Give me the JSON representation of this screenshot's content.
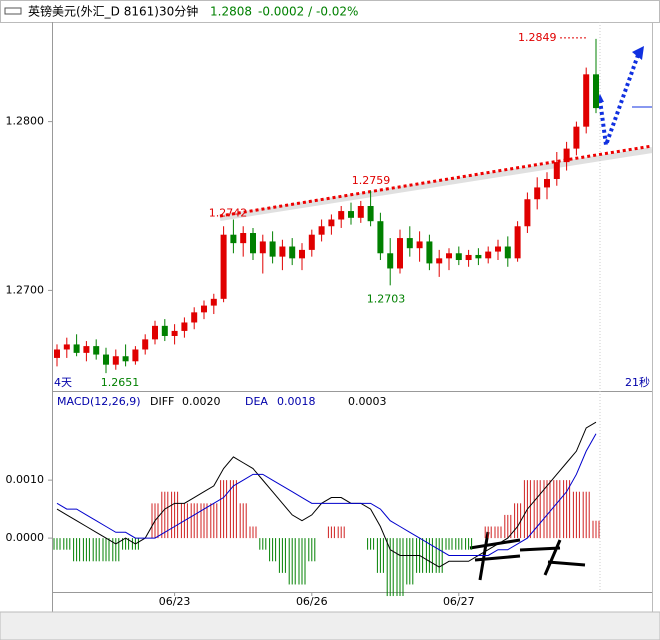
{
  "header": {
    "title": "英镑美元(外汇_D 8161)30分钟",
    "last": "1.2808",
    "change": "-0.0002 / -0.02%"
  },
  "chart_data": [
    {
      "type": "candlestick",
      "ylim": [
        1.2641,
        1.2859
      ],
      "yticks": [
        {
          "value": 1.27,
          "label": "1.2700"
        },
        {
          "value": 1.28,
          "label": "1.2800"
        }
      ],
      "up_color": "#e00000",
      "down_color": "#008000",
      "candles": [
        [
          1.266,
          1.2668,
          1.2655,
          1.2665
        ],
        [
          1.2665,
          1.2672,
          1.266,
          1.2668
        ],
        [
          1.2668,
          1.2674,
          1.2661,
          1.2663
        ],
        [
          1.2663,
          1.267,
          1.2658,
          1.2667
        ],
        [
          1.2667,
          1.2671,
          1.2659,
          1.2662
        ],
        [
          1.2662,
          1.2666,
          1.2651,
          1.2656
        ],
        [
          1.2656,
          1.2665,
          1.2653,
          1.2661
        ],
        [
          1.2661,
          1.2668,
          1.2655,
          1.2658
        ],
        [
          1.2658,
          1.2667,
          1.2656,
          1.2665
        ],
        [
          1.2665,
          1.2674,
          1.2662,
          1.2671
        ],
        [
          1.2671,
          1.2682,
          1.2668,
          1.2679
        ],
        [
          1.2679,
          1.2683,
          1.267,
          1.2673
        ],
        [
          1.2673,
          1.268,
          1.2668,
          1.2676
        ],
        [
          1.2676,
          1.2684,
          1.2672,
          1.2681
        ],
        [
          1.2681,
          1.269,
          1.2677,
          1.2687
        ],
        [
          1.2687,
          1.2694,
          1.2683,
          1.2691
        ],
        [
          1.2691,
          1.2698,
          1.2686,
          1.2695
        ],
        [
          1.2695,
          1.2738,
          1.2693,
          1.2733
        ],
        [
          1.2733,
          1.2742,
          1.2722,
          1.2728
        ],
        [
          1.2728,
          1.2738,
          1.272,
          1.2734
        ],
        [
          1.2734,
          1.2737,
          1.2718,
          1.2722
        ],
        [
          1.2722,
          1.2733,
          1.271,
          1.2729
        ],
        [
          1.2729,
          1.2735,
          1.2716,
          1.272
        ],
        [
          1.272,
          1.273,
          1.2712,
          1.2726
        ],
        [
          1.2726,
          1.2731,
          1.2715,
          1.2719
        ],
        [
          1.2719,
          1.2728,
          1.2712,
          1.2724
        ],
        [
          1.2724,
          1.2736,
          1.272,
          1.2733
        ],
        [
          1.2733,
          1.2742,
          1.2729,
          1.2738
        ],
        [
          1.2738,
          1.2745,
          1.2733,
          1.2742
        ],
        [
          1.2742,
          1.275,
          1.2737,
          1.2747
        ],
        [
          1.2747,
          1.2752,
          1.2739,
          1.2743
        ],
        [
          1.2743,
          1.2753,
          1.274,
          1.275
        ],
        [
          1.275,
          1.2759,
          1.2738,
          1.2741
        ],
        [
          1.2741,
          1.2746,
          1.2718,
          1.2722
        ],
        [
          1.2722,
          1.2731,
          1.2703,
          1.2713
        ],
        [
          1.2713,
          1.2736,
          1.271,
          1.2731
        ],
        [
          1.2731,
          1.2738,
          1.272,
          1.2725
        ],
        [
          1.2725,
          1.2735,
          1.2717,
          1.2729
        ],
        [
          1.2729,
          1.2733,
          1.2712,
          1.2716
        ],
        [
          1.2716,
          1.2724,
          1.2708,
          1.2719
        ],
        [
          1.2719,
          1.2725,
          1.2712,
          1.2722
        ],
        [
          1.2722,
          1.2726,
          1.2715,
          1.2718
        ],
        [
          1.2718,
          1.2724,
          1.2714,
          1.2721
        ],
        [
          1.2721,
          1.2725,
          1.2715,
          1.2719
        ],
        [
          1.2719,
          1.2726,
          1.2716,
          1.2723
        ],
        [
          1.2723,
          1.273,
          1.2718,
          1.2726
        ],
        [
          1.2726,
          1.2732,
          1.2714,
          1.2719
        ],
        [
          1.2719,
          1.2741,
          1.2717,
          1.2738
        ],
        [
          1.2738,
          1.2758,
          1.2734,
          1.2754
        ],
        [
          1.2754,
          1.2767,
          1.2748,
          1.2761
        ],
        [
          1.2761,
          1.277,
          1.2754,
          1.2766
        ],
        [
          1.2766,
          1.2782,
          1.2762,
          1.2776
        ],
        [
          1.2776,
          1.2788,
          1.2771,
          1.2784
        ],
        [
          1.2784,
          1.28,
          1.278,
          1.2797
        ],
        [
          1.2797,
          1.2832,
          1.2793,
          1.2828
        ],
        [
          1.2828,
          1.2849,
          1.2805,
          1.2808
        ]
      ],
      "annotations": [
        {
          "label": "1.2849",
          "value": 1.2849
        },
        {
          "label": "1.2759",
          "value": 1.2759
        },
        {
          "label": "1.2742",
          "value": 1.2742
        },
        {
          "label": "1.2703",
          "value": 1.2703
        },
        {
          "label": "1.2651",
          "value": 1.2651
        }
      ],
      "corner_labels": [
        "4天",
        "21秒"
      ]
    },
    {
      "type": "macd",
      "title": "MACD(12,26,9)",
      "ylim": [
        -0.00093,
        0.00221
      ],
      "yticks": [
        {
          "value": 0,
          "label": "0.0000"
        },
        {
          "value": 0.001,
          "label": "0.0010"
        }
      ],
      "categories": [
        null,
        null,
        null,
        null,
        null,
        null,
        null,
        null,
        null,
        null,
        null,
        null,
        "06/23",
        null,
        null,
        null,
        null,
        null,
        null,
        null,
        null,
        null,
        null,
        null,
        null,
        null,
        "06/26",
        null,
        null,
        null,
        null,
        null,
        null,
        null,
        null,
        null,
        null,
        null,
        null,
        null,
        null,
        "06/27",
        null,
        null,
        null,
        null,
        null,
        null,
        null,
        null,
        null,
        null,
        null,
        null,
        null,
        null
      ],
      "series": [
        {
          "name": "DIFF",
          "color": "#000000",
          "last_label": "0.0020",
          "values": [
            0.0005,
            0.0004,
            0.0003,
            0.0002,
            0.0001,
            0.0,
            -0.0001,
            0.0,
            -0.0001,
            0.0,
            0.0003,
            0.0005,
            0.0006,
            0.0006,
            0.0007,
            0.0008,
            0.0009,
            0.0012,
            0.0014,
            0.0013,
            0.0012,
            0.001,
            0.0008,
            0.0006,
            0.0004,
            0.0003,
            0.0004,
            0.0006,
            0.0007,
            0.0007,
            0.0006,
            0.0006,
            0.0005,
            0.0002,
            -0.0002,
            -0.0003,
            -0.0003,
            -0.0003,
            -0.0004,
            -0.0005,
            -0.0004,
            -0.0004,
            -0.0004,
            -0.0003,
            -0.0002,
            -0.0001,
            0.0,
            0.0002,
            0.0005,
            0.0007,
            0.0009,
            0.0011,
            0.0013,
            0.0015,
            0.0019,
            0.002
          ]
        },
        {
          "name": "DEA",
          "color": "#0000cc",
          "last_label": "0.0018",
          "values": [
            0.0006,
            0.0005,
            0.0005,
            0.0004,
            0.0003,
            0.0002,
            0.0001,
            0.0001,
            0.0,
            0.0,
            0.0,
            0.0001,
            0.0002,
            0.0003,
            0.0004,
            0.0005,
            0.0006,
            0.0007,
            0.0009,
            0.001,
            0.0011,
            0.0011,
            0.001,
            0.0009,
            0.0008,
            0.0007,
            0.0006,
            0.0006,
            0.0006,
            0.0006,
            0.0006,
            0.0006,
            0.0006,
            0.0005,
            0.0003,
            0.0002,
            0.0001,
            0.0,
            -0.0001,
            -0.0002,
            -0.0003,
            -0.0003,
            -0.0003,
            -0.0003,
            -0.0003,
            -0.0002,
            -0.0002,
            -0.0001,
            0.0,
            0.0002,
            0.0004,
            0.0006,
            0.0008,
            0.0011,
            0.0015,
            0.0018
          ]
        }
      ],
      "histogram": {
        "last_label": "0.0003",
        "up_color": "#d02020",
        "down_color": "#008000",
        "values": [
          -0.0002,
          -0.0002,
          -0.0004,
          -0.0004,
          -0.0004,
          -0.0004,
          -0.0004,
          -0.0002,
          -0.0002,
          0.0,
          0.0006,
          0.0008,
          0.0008,
          0.0006,
          0.0006,
          0.0006,
          0.0006,
          0.001,
          0.001,
          0.0006,
          0.0002,
          -0.0002,
          -0.0004,
          -0.0006,
          -0.0008,
          -0.0008,
          -0.0004,
          0.0,
          0.0002,
          0.0002,
          0.0,
          0.0,
          -0.0002,
          -0.0006,
          -0.001,
          -0.001,
          -0.0008,
          -0.0006,
          -0.0006,
          -0.0006,
          -0.0002,
          -0.0002,
          -0.0002,
          0.0,
          0.0002,
          0.0002,
          0.0004,
          0.0006,
          0.001,
          0.001,
          0.001,
          0.001,
          0.001,
          0.0008,
          0.0008,
          0.0003
        ]
      }
    }
  ]
}
